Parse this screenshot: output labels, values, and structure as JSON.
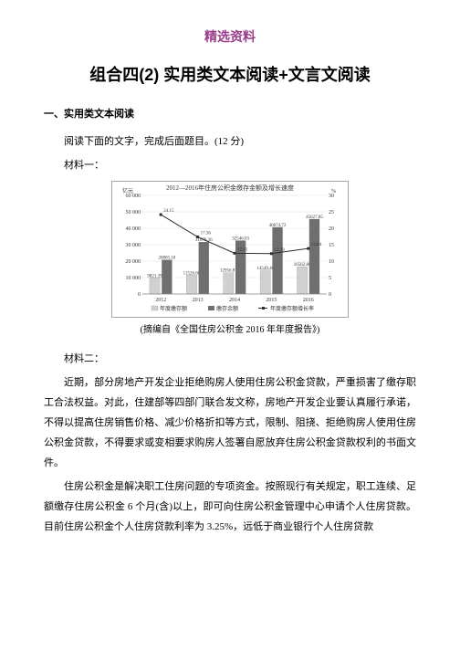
{
  "header_label": "精选资料",
  "main_title": "组合四(2) 实用类文本阅读+文言文阅读",
  "section1_head": "一、实用类文本阅读",
  "reading_prompt": "阅读下面的文字，完成后面题目。(12 分)",
  "material1_label": "材料一：",
  "chart_title": "2012—2016年住房公积金缴存金额及增长速度",
  "yaxis_left_label": "亿元",
  "yaxis_right_label": "%",
  "chart_caption": "(摘编自《全国住房公积金 2016 年年度报告》)",
  "material2_label": "材料二：",
  "material2_p1": "近期，部分房地产开发企业拒绝购房人使用住房公积金贷款，严重损害了缴存职工合法权益。对此，住建部等四部门联合发文称，房地产开发企业要认真履行承诺，不得以提高住房销售价格、减少价格折扣等方式，限制、阻挠、拒绝购房人使用住房公积金贷款，不得要求或变相要求购房人签署自愿放弃住房公积金贷款权利的书面文件。",
  "material2_p2": "住房公积金是解决职工住房问题的专项资金。按照现行有关规定，职工连续、足额缴存住房公积金 6 个月(含)以上，即可向住房公积金管理中心申请个人住房贷款。目前住房公积金个人住房贷款利率为 3.25%，远低于商业银行个人住房贷款",
  "chart": {
    "type": "bar_line",
    "categories": [
      "2012",
      "2013",
      "2014",
      "2015",
      "2016"
    ],
    "y_left_max": 60000,
    "y_left_ticks": [
      0,
      10000,
      20000,
      30000,
      40000,
      50000,
      60000
    ],
    "y_right_max": 30,
    "y_right_ticks": [
      0,
      5,
      10,
      15,
      20,
      25,
      30
    ],
    "deposit_annual": [
      9821.39,
      11526.68,
      12956.87,
      14549.46,
      16562.88
    ],
    "deposit_total": [
      20805.1,
      31679.36,
      32546.03,
      40674.72,
      45627.85
    ],
    "growth": [
      24.15,
      17.36,
      12.41,
      12.29,
      13.84
    ],
    "colors": {
      "bar_annual": "#d0d0d0",
      "bar_total": "#6f6f6f",
      "line": "#2e2e2e",
      "grid": "#e0e0e0",
      "axis": "#888888",
      "text": "#333333",
      "bg": "#ffffff",
      "border": "#808080"
    },
    "legend": {
      "annual": "年度缴存额",
      "total": "缴存余额",
      "growth": "年度缴存额增长率"
    },
    "fontsize_title": 7,
    "fontsize_axis": 6,
    "fontsize_value": 5,
    "fontsize_legend": 6
  }
}
